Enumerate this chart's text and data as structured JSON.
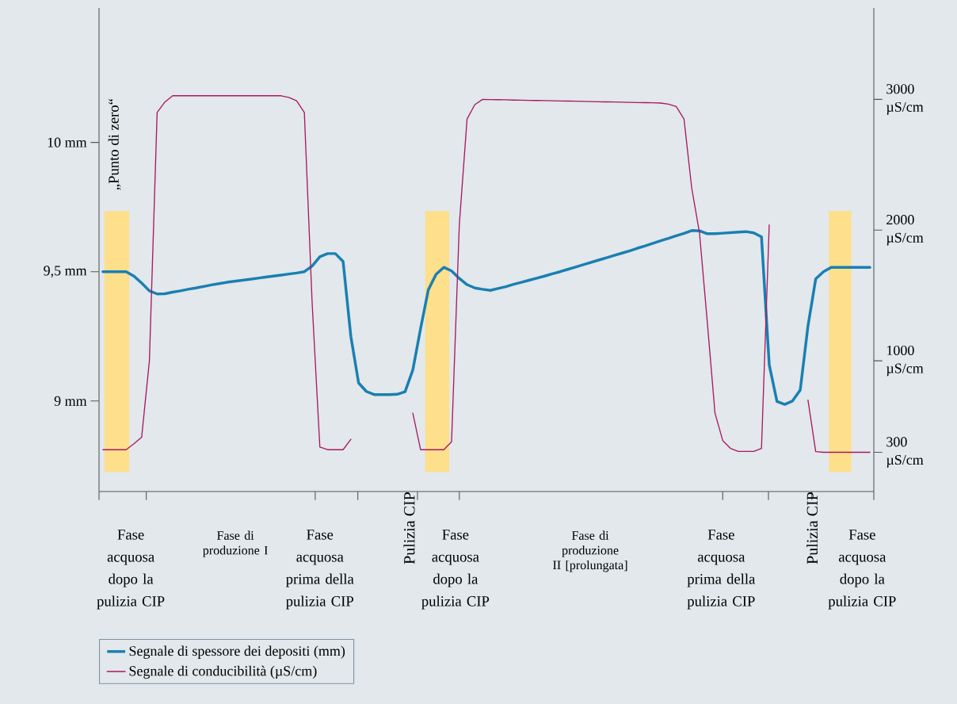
{
  "chart_data": {
    "type": "line",
    "categories": [
      null,
      null,
      null,
      null,
      null,
      null,
      null,
      null,
      null,
      null,
      null,
      null,
      null,
      null,
      null,
      null,
      null,
      null,
      null,
      null,
      null,
      null,
      null,
      null,
      null,
      null,
      null,
      null,
      null,
      null,
      null,
      null,
      null,
      null,
      null,
      null,
      null,
      null,
      null,
      null,
      null,
      null,
      null,
      null,
      null,
      null,
      null,
      null,
      null,
      null,
      null,
      null,
      null,
      null,
      null,
      null,
      null,
      null,
      null,
      null,
      null,
      null,
      null,
      null,
      null,
      null,
      null,
      null,
      null,
      null,
      null,
      null,
      null,
      null,
      null,
      null,
      null,
      null,
      null,
      null,
      null,
      null,
      null,
      null,
      null,
      null,
      null,
      null,
      null,
      null,
      null,
      null,
      null,
      null,
      null,
      null,
      null,
      null,
      null,
      null
    ],
    "ylim": [
      8.65,
      10.52
    ],
    "yticks": [
      {
        "value": 9,
        "label": "9 mm"
      },
      {
        "value": 9.5,
        "label": "9,5 mm"
      },
      {
        "value": 10,
        "label": "10 mm"
      }
    ],
    "y2lim": [
      0,
      3700
    ],
    "y2ticks": [
      {
        "value": 300,
        "label": "300 µS/cm"
      },
      {
        "value": 1000,
        "label": "1000 µS/cm"
      },
      {
        "value": 2000,
        "label": "2000 µS/cm"
      },
      {
        "value": 3000,
        "label": "3000 µS/cm"
      }
    ],
    "legend": "bottom",
    "series": [
      {
        "name": "Segnale di spessore dei depositi (mm)",
        "color": "#1a7fb2",
        "values": [
          9.5,
          9.5,
          9.5,
          9.5,
          9.483,
          9.456,
          9.426,
          9.414,
          9.415,
          9.421,
          9.426,
          9.432,
          9.437,
          9.443,
          9.449,
          9.454,
          9.459,
          9.463,
          9.467,
          9.471,
          9.475,
          9.479,
          9.483,
          9.487,
          9.491,
          9.495,
          9.5,
          9.522,
          9.558,
          9.57,
          9.57,
          9.54,
          9.25,
          9.07,
          9.037,
          9.025,
          9.025,
          9.025,
          9.026,
          9.036,
          9.12,
          9.28,
          9.43,
          9.49,
          9.517,
          9.503,
          9.474,
          9.45,
          9.437,
          9.432,
          9.428,
          9.435,
          9.442,
          9.451,
          9.459,
          9.467,
          9.475,
          9.483,
          9.492,
          9.5,
          9.509,
          9.518,
          9.527,
          9.536,
          9.545,
          9.554,
          9.563,
          9.572,
          9.581,
          9.591,
          9.6,
          9.61,
          9.62,
          9.629,
          9.639,
          9.648,
          9.659,
          9.658,
          9.647,
          9.647,
          9.649,
          9.651,
          9.653,
          9.655,
          9.65,
          9.635,
          9.14,
          8.998,
          8.987,
          9.0,
          9.042,
          9.29,
          9.472,
          9.5,
          9.517,
          9.517,
          9.517,
          9.517,
          9.517,
          9.517
        ]
      },
      {
        "name": "Segnale di conducibilità (µS/cm)",
        "color": "#a8195f",
        "axis": "y2",
        "values": [
          320,
          320,
          320,
          320,
          365,
          415,
          1000,
          2900,
          2980,
          3028,
          3028,
          3028,
          3028,
          3028,
          3028,
          3028,
          3028,
          3028,
          3028,
          3028,
          3028,
          3028,
          3028,
          3028,
          3015,
          2990,
          2900,
          1450,
          340,
          320,
          320,
          320,
          400,
          null,
          null,
          null,
          null,
          null,
          null,
          null,
          600,
          320,
          320,
          320,
          320,
          380,
          2040,
          2850,
          2960,
          3000,
          2999,
          2998,
          2997,
          2995,
          2994,
          2993,
          2992,
          2991,
          2989,
          2988,
          2987,
          2986,
          2985,
          2983,
          2982,
          2981,
          2980,
          2979,
          2977,
          2976,
          2975,
          2974,
          2972,
          2964,
          2946,
          2850,
          2320,
          1980,
          1300,
          600,
          390,
          330,
          307,
          307,
          307,
          330,
          2040,
          null,
          null,
          null,
          null,
          700,
          305,
          300,
          300,
          300,
          300,
          300,
          300,
          300
        ]
      }
    ],
    "annotations": [
      "„Punto di zero“",
      "Fase acquosa dopo la pulizia CIP",
      "Fase di produzione I",
      "Fase acquosa prima della pulizia CIP",
      "Pulizia CIP",
      "Fase acquosa dopo la pulizia CIP",
      "Fase di produzione II [prolungata]",
      "Fase acquosa prima della pulizia CIP",
      "Pulizia CIP",
      "Fase acquosa dopo la pulizia CIP"
    ]
  }
}
